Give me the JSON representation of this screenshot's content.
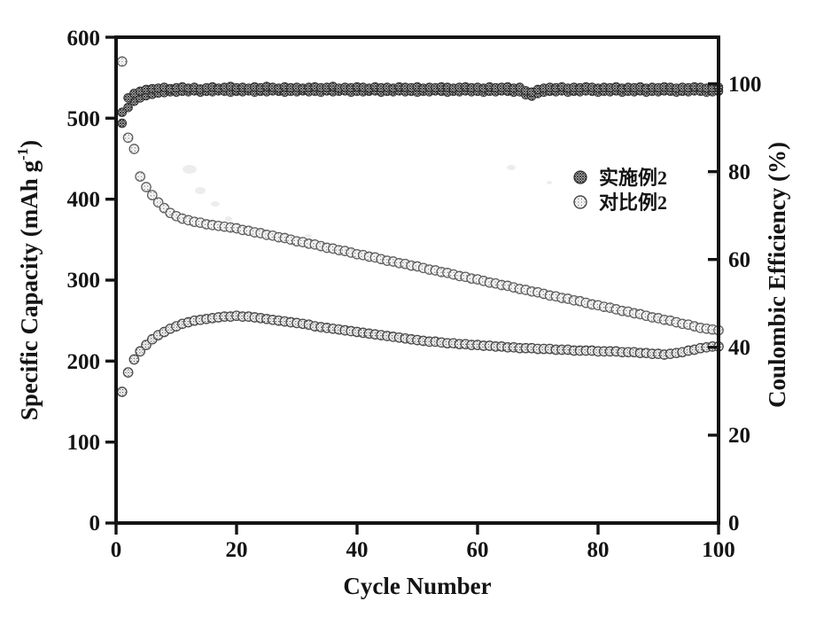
{
  "figure": {
    "legend": {
      "items": [
        {
          "label": "实施例2",
          "marker": "hatched-dark-circle"
        },
        {
          "label": "对比例2",
          "marker": "hatched-light-circle"
        }
      ]
    },
    "colors": {
      "axis": "#141414",
      "marker_dark": "#2b2b2b",
      "marker_light": "#777777",
      "background": "#ffffff"
    }
  },
  "chart_data": {
    "type": "scatter",
    "title": "",
    "xlabel": "Cycle Number",
    "ylabel_left": "Specific Capacity (mAh g⁻¹)",
    "ylabel_left_parts": {
      "pre": "Specific Capacity (mAh g",
      "sup": "-1",
      "post": ")"
    },
    "ylabel_right": "Coulombic Efficiency (%)",
    "xlim": [
      0,
      100
    ],
    "ylim_left": [
      0,
      600
    ],
    "ylim_right": [
      0,
      110.6
    ],
    "grid": false,
    "legend_position": "inside upper-right",
    "x_ticks": [
      "0",
      "20",
      "40",
      "60",
      "80",
      "100"
    ],
    "left_ticks": [
      "600",
      "500",
      "400",
      "300",
      "200",
      "100",
      "0"
    ],
    "right_ticks": [
      "100",
      "80",
      "60",
      "40",
      "20",
      "0"
    ],
    "legend": [
      "实施例2",
      "对比例2"
    ],
    "cycles": [
      1,
      2,
      3,
      4,
      5,
      6,
      7,
      8,
      9,
      10,
      11,
      12,
      13,
      14,
      15,
      16,
      17,
      18,
      19,
      20,
      21,
      22,
      23,
      24,
      25,
      26,
      27,
      28,
      29,
      30,
      31,
      32,
      33,
      34,
      35,
      36,
      37,
      38,
      39,
      40,
      41,
      42,
      43,
      44,
      45,
      46,
      47,
      48,
      49,
      50,
      51,
      52,
      53,
      54,
      55,
      56,
      57,
      58,
      59,
      60,
      61,
      62,
      63,
      64,
      65,
      66,
      67,
      68,
      69,
      70,
      71,
      72,
      73,
      74,
      75,
      76,
      77,
      78,
      79,
      80,
      81,
      82,
      83,
      84,
      85,
      86,
      87,
      88,
      89,
      90,
      91,
      92,
      93,
      94,
      95,
      96,
      97,
      98,
      99,
      100
    ],
    "series": [
      {
        "id": "example2-capacity",
        "name": "实施例2",
        "quantity": "Specific Capacity (mAh g-1)",
        "axis": "left",
        "marker": "hatched-circle",
        "values": [
          162,
          186,
          202,
          212,
          220,
          227,
          232,
          236,
          240,
          243,
          246,
          248,
          250,
          251,
          252,
          253,
          254,
          255,
          255,
          256,
          255,
          255,
          254,
          253,
          252,
          251,
          250,
          249,
          248,
          247,
          246,
          245,
          243,
          242,
          241,
          240,
          239,
          238,
          237,
          236,
          235,
          234,
          233,
          232,
          231,
          230,
          229,
          228,
          227,
          226,
          225,
          224,
          224,
          223,
          222,
          222,
          221,
          221,
          220,
          220,
          219,
          219,
          218,
          218,
          217,
          217,
          216,
          216,
          216,
          215,
          215,
          215,
          214,
          214,
          214,
          213,
          213,
          213,
          213,
          212,
          212,
          212,
          212,
          211,
          211,
          211,
          210,
          210,
          209,
          209,
          208,
          209,
          210,
          211,
          213,
          214,
          216,
          217,
          218,
          218
        ]
      },
      {
        "id": "comparative2-capacity",
        "name": "对比例2",
        "quantity": "Specific Capacity (mAh g-1)",
        "axis": "left",
        "marker": "hatched-circle",
        "values": [
          570,
          476,
          462,
          428,
          415,
          405,
          396,
          389,
          383,
          379,
          376,
          374,
          372,
          371,
          369,
          368,
          367,
          366,
          365,
          364,
          362,
          361,
          359,
          358,
          356,
          355,
          353,
          352,
          350,
          348,
          347,
          345,
          344,
          342,
          340,
          339,
          337,
          336,
          334,
          332,
          331,
          329,
          328,
          326,
          324,
          323,
          321,
          320,
          318,
          317,
          315,
          313,
          312,
          310,
          309,
          307,
          305,
          304,
          302,
          301,
          299,
          297,
          296,
          294,
          293,
          291,
          289,
          288,
          286,
          285,
          283,
          281,
          280,
          278,
          277,
          275,
          274,
          272,
          270,
          269,
          267,
          266,
          264,
          262,
          261,
          259,
          258,
          256,
          254,
          253,
          251,
          250,
          248,
          246,
          245,
          243,
          241,
          240,
          239,
          238
        ]
      },
      {
        "id": "example2-efficiency",
        "name": "实施例2",
        "quantity": "Coulombic Efficiency (%)",
        "axis": "right",
        "marker": "hatched-circle",
        "values": [
          93.5,
          96.8,
          97.8,
          98.3,
          98.7,
          98.9,
          99.0,
          99.2,
          98.9,
          99.1,
          99.3,
          99.0,
          99.2,
          98.8,
          99.1,
          99.3,
          99.0,
          99.2,
          99.4,
          99.1,
          99.2,
          99.0,
          99.3,
          99.1,
          99.4,
          99.2,
          99.0,
          99.3,
          99.1,
          99.2,
          99.0,
          99.2,
          99.3,
          99.1,
          99.2,
          99.4,
          99.0,
          99.2,
          99.1,
          99.3,
          99.2,
          99.0,
          99.3,
          99.1,
          99.2,
          99.0,
          99.3,
          99.2,
          99.1,
          99.3,
          99.0,
          99.2,
          99.1,
          99.3,
          99.2,
          99.0,
          99.2,
          99.3,
          99.1,
          99.2,
          99.0,
          99.3,
          99.1,
          99.2,
          99.3,
          99.0,
          99.2,
          98.4,
          98.1,
          98.7,
          99.0,
          99.2,
          99.1,
          99.3,
          99.0,
          99.2,
          99.1,
          99.3,
          99.2,
          99.0,
          99.2,
          99.1,
          99.3,
          99.0,
          99.2,
          99.1,
          99.3,
          99.0,
          99.2,
          99.1,
          99.3,
          99.2,
          99.0,
          99.2,
          99.1,
          99.3,
          99.2,
          99.0,
          99.1,
          99.2
        ]
      },
      {
        "id": "comparative2-efficiency",
        "name": "对比例2",
        "quantity": "Coulombic Efficiency (%)",
        "axis": "right",
        "marker": "hatched-circle",
        "values": [
          91.0,
          94.6,
          96.0,
          96.8,
          97.3,
          97.6,
          97.9,
          98.0,
          98.2,
          98.1,
          98.3,
          98.2,
          98.4,
          98.1,
          98.3,
          98.2,
          98.4,
          98.3,
          98.1,
          98.3,
          98.2,
          98.4,
          98.1,
          98.3,
          98.2,
          98.4,
          98.3,
          98.1,
          98.3,
          98.2,
          98.4,
          98.2,
          98.3,
          98.1,
          98.4,
          98.2,
          98.3,
          98.4,
          98.1,
          98.3,
          98.2,
          98.3,
          98.4,
          98.1,
          98.3,
          98.2,
          98.4,
          98.2,
          98.3,
          98.1,
          98.3,
          98.2,
          98.4,
          98.3,
          98.1,
          98.3,
          98.2,
          98.4,
          98.2,
          98.3,
          98.1,
          98.3,
          98.2,
          98.4,
          98.3,
          98.1,
          98.2,
          97.5,
          97.2,
          97.8,
          98.1,
          98.3,
          98.2,
          98.4,
          98.1,
          98.3,
          98.2,
          98.4,
          98.3,
          98.1,
          98.3,
          98.2,
          98.4,
          98.1,
          98.3,
          98.2,
          98.4,
          98.1,
          98.3,
          98.2,
          98.4,
          98.3,
          98.1,
          98.3,
          98.2,
          98.4,
          98.3,
          98.1,
          98.2,
          98.3
        ]
      }
    ]
  }
}
